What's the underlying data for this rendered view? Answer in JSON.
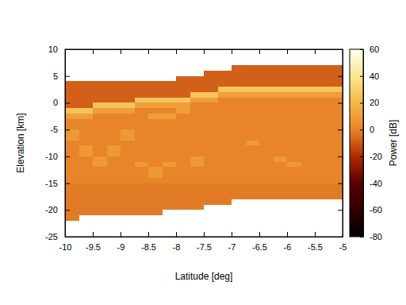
{
  "chart_data": {
    "type": "heatmap",
    "x_label": "Latitude [deg]",
    "y_label": "Elevation [km]",
    "xlim": [
      -10,
      -5
    ],
    "xticks": [
      -10,
      -9.5,
      -9,
      -8.5,
      -8,
      -7.5,
      -7,
      -6.5,
      -6,
      -5.5,
      -5
    ],
    "ylim": [
      -25,
      10
    ],
    "yticks": [
      -25,
      -20,
      -15,
      -10,
      -5,
      0,
      5,
      10
    ],
    "colorbar": {
      "title": "Power [dB]",
      "range": [
        -80,
        60
      ],
      "ticks": [
        -80,
        -60,
        -40,
        -20,
        0,
        20,
        40,
        60
      ]
    },
    "x": [
      -9.875,
      -9.625,
      -9.375,
      -9.125,
      -8.875,
      -8.625,
      -8.375,
      -8.125,
      -7.875,
      -7.625,
      -7.375,
      -7.125,
      -6.875,
      -6.625,
      -6.375,
      -6.125,
      -5.875,
      -5.625,
      -5.375,
      -5.125
    ],
    "y": [
      -21.5,
      -20.5,
      -19.5,
      -18.5,
      -17.5,
      -16.5,
      -15.5,
      -14.5,
      -13.5,
      -12.5,
      -11.5,
      -10.5,
      -9.5,
      -8.5,
      -7.5,
      -6.5,
      -5.5,
      -4.5,
      -3.5,
      -2.5,
      -1.5,
      -0.5,
      0.5,
      1.5,
      2.5,
      3.5,
      4.5,
      5.5,
      6.5
    ],
    "z": [
      [
        -2,
        null,
        null,
        null,
        null,
        null,
        null,
        null,
        null,
        null,
        null,
        null,
        null,
        null,
        null,
        null,
        null,
        null,
        null,
        null
      ],
      [
        -2,
        -2,
        -2,
        -2,
        -2,
        -2,
        -2,
        null,
        null,
        null,
        null,
        null,
        null,
        null,
        null,
        null,
        null,
        null,
        null,
        null
      ],
      [
        -2,
        -2,
        -2,
        -2,
        -2,
        -2,
        -2,
        -2,
        -2,
        -2,
        null,
        null,
        null,
        null,
        null,
        null,
        null,
        null,
        null,
        null
      ],
      [
        -2,
        -2,
        -2,
        -2,
        -2,
        -2,
        -2,
        -2,
        -2,
        -2,
        -2,
        -2,
        null,
        null,
        null,
        null,
        null,
        null,
        null,
        null
      ],
      [
        -2,
        -2,
        -2,
        -2,
        -2,
        -2,
        -2,
        -2,
        -2,
        -2,
        -2,
        -2,
        -2,
        -2,
        -2,
        -2,
        -2,
        -2,
        -2,
        -2
      ],
      [
        -2,
        -2,
        -2,
        -2,
        -2,
        -2,
        -2,
        -2,
        -2,
        -2,
        -2,
        -2,
        -2,
        -2,
        -2,
        -2,
        -2,
        -2,
        -2,
        -2
      ],
      [
        -2,
        -2,
        -2,
        -2,
        -2,
        -2,
        -2,
        -2,
        -2,
        -2,
        -2,
        -2,
        -2,
        -2,
        -2,
        -2,
        -2,
        -2,
        -2,
        -2
      ],
      [
        0,
        0,
        0,
        0,
        0,
        0,
        0,
        0,
        0,
        0,
        0,
        0,
        0,
        0,
        0,
        0,
        0,
        0,
        0,
        0
      ],
      [
        0,
        0,
        0,
        0,
        0,
        0,
        8,
        0,
        0,
        0,
        0,
        0,
        0,
        0,
        0,
        0,
        0,
        0,
        0,
        0
      ],
      [
        0,
        0,
        0,
        0,
        0,
        0,
        8,
        0,
        0,
        0,
        0,
        0,
        0,
        0,
        0,
        0,
        0,
        0,
        0,
        0
      ],
      [
        0,
        0,
        8,
        0,
        0,
        8,
        0,
        8,
        0,
        8,
        0,
        0,
        0,
        0,
        0,
        0,
        8,
        0,
        0,
        0
      ],
      [
        0,
        0,
        8,
        0,
        0,
        0,
        0,
        0,
        0,
        8,
        0,
        0,
        0,
        0,
        0,
        8,
        0,
        0,
        0,
        0
      ],
      [
        0,
        8,
        0,
        8,
        0,
        0,
        0,
        0,
        0,
        0,
        0,
        0,
        0,
        0,
        0,
        0,
        0,
        0,
        0,
        0
      ],
      [
        0,
        8,
        0,
        8,
        0,
        0,
        0,
        0,
        0,
        0,
        0,
        0,
        0,
        0,
        0,
        0,
        0,
        0,
        0,
        0
      ],
      [
        0,
        0,
        0,
        0,
        0,
        0,
        0,
        0,
        0,
        0,
        0,
        0,
        0,
        8,
        0,
        0,
        0,
        0,
        0,
        0
      ],
      [
        8,
        0,
        0,
        0,
        8,
        0,
        0,
        0,
        0,
        0,
        0,
        0,
        0,
        0,
        0,
        0,
        0,
        0,
        0,
        0
      ],
      [
        8,
        0,
        0,
        0,
        8,
        0,
        0,
        0,
        0,
        0,
        0,
        0,
        0,
        0,
        0,
        0,
        0,
        0,
        0,
        0
      ],
      [
        0,
        0,
        0,
        0,
        0,
        0,
        0,
        0,
        0,
        0,
        0,
        0,
        0,
        0,
        0,
        0,
        0,
        0,
        0,
        0
      ],
      [
        0,
        0,
        0,
        0,
        0,
        0,
        0,
        0,
        0,
        0,
        0,
        0,
        0,
        0,
        0,
        0,
        0,
        0,
        0,
        0
      ],
      [
        10,
        10,
        0,
        0,
        0,
        0,
        10,
        10,
        0,
        0,
        0,
        0,
        0,
        0,
        0,
        0,
        0,
        0,
        0,
        0
      ],
      [
        25,
        25,
        10,
        10,
        10,
        0,
        0,
        0,
        10,
        0,
        0,
        0,
        0,
        0,
        0,
        0,
        0,
        0,
        0,
        0
      ],
      [
        -8,
        -8,
        25,
        25,
        25,
        10,
        10,
        10,
        10,
        0,
        0,
        0,
        0,
        0,
        0,
        0,
        0,
        0,
        0,
        0
      ],
      [
        -8,
        -8,
        -8,
        -8,
        -8,
        25,
        25,
        25,
        25,
        10,
        10,
        0,
        0,
        0,
        0,
        0,
        0,
        0,
        0,
        0
      ],
      [
        -8,
        -8,
        -8,
        -8,
        -8,
        -8,
        -8,
        -8,
        -8,
        25,
        25,
        10,
        10,
        10,
        10,
        10,
        10,
        10,
        10,
        10
      ],
      [
        -8,
        -8,
        -8,
        -8,
        -8,
        -8,
        -8,
        -8,
        -8,
        -8,
        -8,
        25,
        25,
        25,
        25,
        25,
        25,
        25,
        25,
        25
      ],
      [
        -8,
        -8,
        -8,
        -8,
        -8,
        -8,
        -8,
        -8,
        -8,
        -8,
        -8,
        -8,
        -8,
        -8,
        -8,
        -8,
        -8,
        -8,
        -8,
        -8
      ],
      [
        null,
        null,
        null,
        null,
        null,
        null,
        null,
        null,
        -8,
        -8,
        -8,
        -8,
        -8,
        -8,
        -8,
        -8,
        -8,
        -8,
        -8,
        -8
      ],
      [
        null,
        null,
        null,
        null,
        null,
        null,
        null,
        null,
        null,
        null,
        -8,
        -8,
        -8,
        -8,
        -8,
        -8,
        -8,
        -8,
        -8,
        -8
      ],
      [
        null,
        null,
        null,
        null,
        null,
        null,
        null,
        null,
        null,
        null,
        null,
        null,
        -8,
        -8,
        -8,
        -8,
        -8,
        -8,
        -8,
        -8
      ]
    ]
  }
}
